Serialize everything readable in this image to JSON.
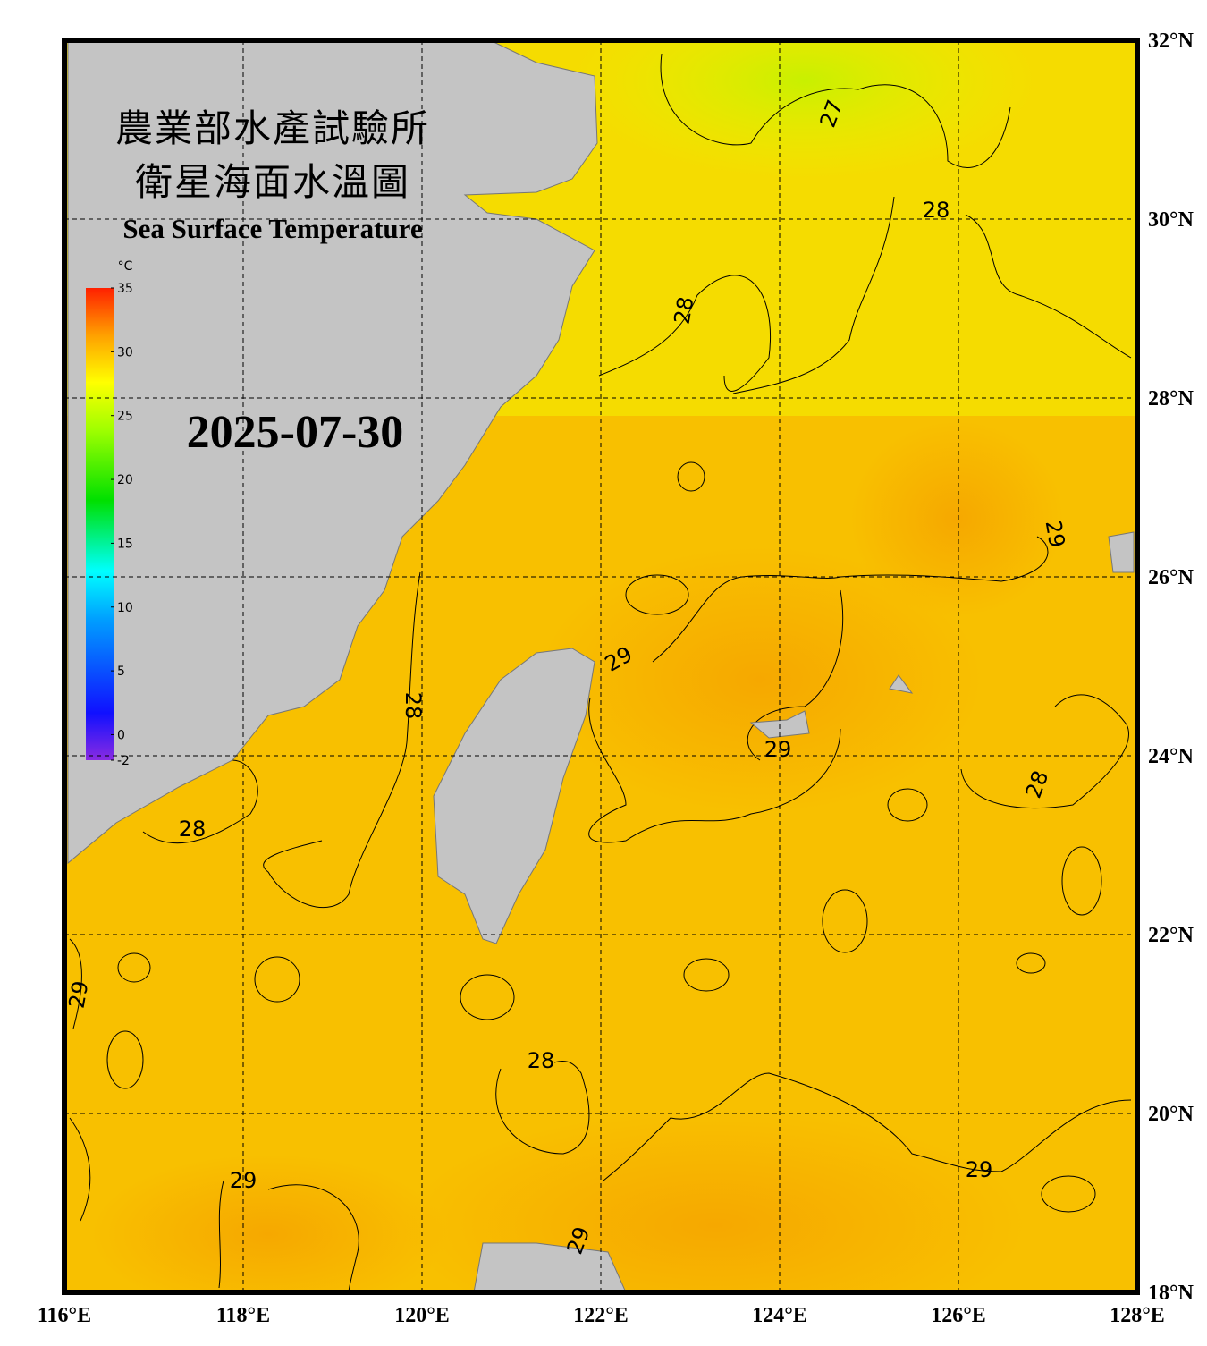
{
  "header": {
    "title_zh_1": "農業部水產試驗所",
    "title_zh_2": "衛星海面水溫圖",
    "title_en": "Sea Surface Temperature",
    "date": "2025-07-30"
  },
  "colorbar": {
    "unit": "°C",
    "ticks": [
      35,
      30,
      25,
      20,
      15,
      10,
      5,
      0,
      -2
    ]
  },
  "lon_ticks": [
    {
      "value": 116,
      "label": "116°E"
    },
    {
      "value": 118,
      "label": "118°E"
    },
    {
      "value": 120,
      "label": "120°E"
    },
    {
      "value": 122,
      "label": "122°E"
    },
    {
      "value": 124,
      "label": "124°E"
    },
    {
      "value": 126,
      "label": "126°E"
    },
    {
      "value": 128,
      "label": "128°E"
    }
  ],
  "lat_ticks": [
    {
      "value": 18,
      "label": "18°N"
    },
    {
      "value": 20,
      "label": "20°N"
    },
    {
      "value": 22,
      "label": "22°N"
    },
    {
      "value": 24,
      "label": "24°N"
    },
    {
      "value": 26,
      "label": "26°N"
    },
    {
      "value": 28,
      "label": "28°N"
    },
    {
      "value": 30,
      "label": "30°N"
    },
    {
      "value": 32,
      "label": "32°N"
    }
  ],
  "contour_labels": [
    27,
    28,
    28,
    29,
    29,
    28,
    29,
    28,
    28,
    29,
    28,
    29,
    29,
    29
  ]
}
